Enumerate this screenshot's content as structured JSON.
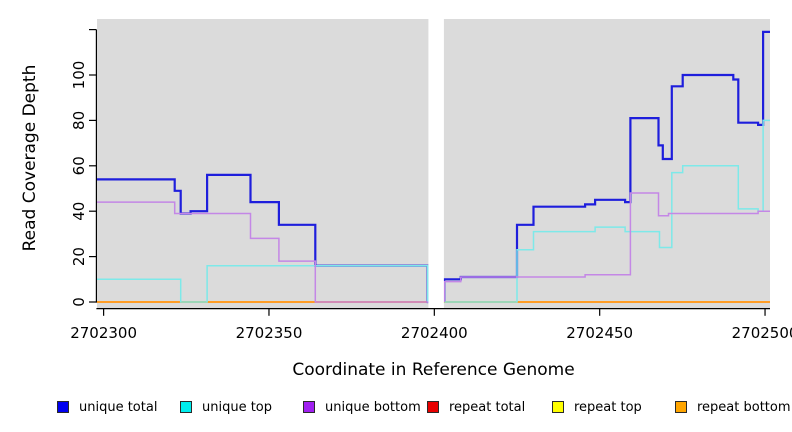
{
  "axes": {
    "x_label": "Coordinate in Reference Genome",
    "y_label": "Read Coverage Depth",
    "x_ticks": [
      {
        "value": 2702300,
        "label": "2702300"
      },
      {
        "value": 2702350,
        "label": "2702350"
      },
      {
        "value": 2702400,
        "label": "2702400"
      },
      {
        "value": 2702450,
        "label": "2702450"
      },
      {
        "value": 2702500,
        "label": "2702500"
      }
    ],
    "y_ticks": [
      {
        "value": 0,
        "label": "0"
      },
      {
        "value": 20,
        "label": "20"
      },
      {
        "value": 40,
        "label": "40"
      },
      {
        "value": 60,
        "label": "60"
      },
      {
        "value": 80,
        "label": "80"
      },
      {
        "value": 100,
        "label": "100"
      },
      {
        "value": 120,
        "label": ""
      }
    ]
  },
  "chart_data": {
    "type": "line",
    "step": "after",
    "title": "",
    "xlabel": "Coordinate in Reference Genome",
    "ylabel": "Read Coverage Depth",
    "xlim": [
      2702298,
      2702501.5
    ],
    "ylim": [
      0,
      120
    ],
    "grid": false,
    "panel_bg": "#DBDBDB",
    "masked_region": {
      "x_start": 2702398.2,
      "x_end": 2702402.9,
      "color": "#FFFFFF"
    },
    "series": [
      {
        "name": "repeat total",
        "color": "#DD2222",
        "width": 1.4,
        "segments": [
          {
            "points": [
              [
                2702298,
                0
              ]
            ],
            "end": 2702501.5
          }
        ]
      },
      {
        "name": "repeat top",
        "color": "#FFFF00",
        "width": 1.4,
        "segments": [
          {
            "points": [
              [
                2702298,
                0
              ]
            ],
            "end": 2702501.5
          }
        ]
      },
      {
        "name": "repeat bottom",
        "color": "#FF9D26",
        "width": 2,
        "segments": [
          {
            "points": [
              [
                2702298,
                0
              ]
            ],
            "end": 2702501.5
          }
        ]
      },
      {
        "name": "unique total",
        "color": "#1E1EDC",
        "width": 2.2,
        "segments": [
          {
            "points": [
              [
                2702298,
                54
              ],
              [
                2702321.5,
                49
              ],
              [
                2702323.3,
                39
              ],
              [
                2702326.3,
                40
              ],
              [
                2702331.3,
                56
              ],
              [
                2702344.4,
                44
              ],
              [
                2702353,
                34
              ],
              [
                2702364,
                16
              ],
              [
                2702398,
                0
              ]
            ],
            "end": 2702398.2
          },
          {
            "points": [
              [
                2702403,
                0
              ],
              [
                2702403,
                10
              ],
              [
                2702408,
                11
              ],
              [
                2702425,
                34
              ],
              [
                2702430,
                42
              ],
              [
                2702445.6,
                43
              ],
              [
                2702448.6,
                45
              ],
              [
                2702457.7,
                44
              ],
              [
                2702459.3,
                81
              ],
              [
                2702467.8,
                69
              ],
              [
                2702469.1,
                63
              ],
              [
                2702471.8,
                95
              ],
              [
                2702475.1,
                100
              ],
              [
                2702490.4,
                98
              ],
              [
                2702491.9,
                79
              ],
              [
                2702497.9,
                78
              ],
              [
                2702499.4,
                119
              ]
            ],
            "end": 2702501.5
          }
        ]
      },
      {
        "name": "unique top",
        "color": "#7DE9E9",
        "width": 1.5,
        "segments": [
          {
            "points": [
              [
                2702298,
                10
              ],
              [
                2702323.3,
                0
              ],
              [
                2702331.3,
                16
              ],
              [
                2702398,
                0
              ]
            ],
            "end": 2702398.2
          },
          {
            "points": [
              [
                2702403,
                0
              ],
              [
                2702425,
                23
              ],
              [
                2702430,
                31
              ],
              [
                2702448.6,
                33
              ],
              [
                2702457.7,
                31
              ],
              [
                2702468.1,
                24
              ],
              [
                2702471.8,
                57
              ],
              [
                2702475.1,
                60
              ],
              [
                2702491.9,
                41
              ],
              [
                2702497.9,
                40
              ],
              [
                2702499.4,
                80
              ]
            ],
            "end": 2702501.5
          }
        ]
      },
      {
        "name": "unique bottom",
        "color": "#C487E6",
        "width": 1.5,
        "segments": [
          {
            "points": [
              [
                2702298,
                44
              ],
              [
                2702321.5,
                39
              ],
              [
                2702344.4,
                28
              ],
              [
                2702353,
                18
              ],
              [
                2702364,
                0
              ]
            ],
            "end": 2702398.2
          },
          {
            "points": [
              [
                2702403,
                0
              ],
              [
                2702403,
                9
              ],
              [
                2702408,
                11
              ],
              [
                2702445.6,
                12
              ],
              [
                2702459.3,
                48
              ],
              [
                2702467.8,
                38
              ],
              [
                2702470.8,
                39
              ],
              [
                2702497.9,
                40
              ]
            ],
            "end": 2702501.5
          }
        ]
      }
    ]
  },
  "legend": {
    "items": [
      {
        "label": "unique total",
        "fill": "#0000F0"
      },
      {
        "label": "unique top",
        "fill": "#00EEEE"
      },
      {
        "label": "unique bottom",
        "fill": "#A020F0"
      },
      {
        "label": "repeat total",
        "fill": "#E80000"
      },
      {
        "label": "repeat top",
        "fill": "#FFFF00"
      },
      {
        "label": "repeat bottom",
        "fill": "#FFA500"
      }
    ]
  }
}
